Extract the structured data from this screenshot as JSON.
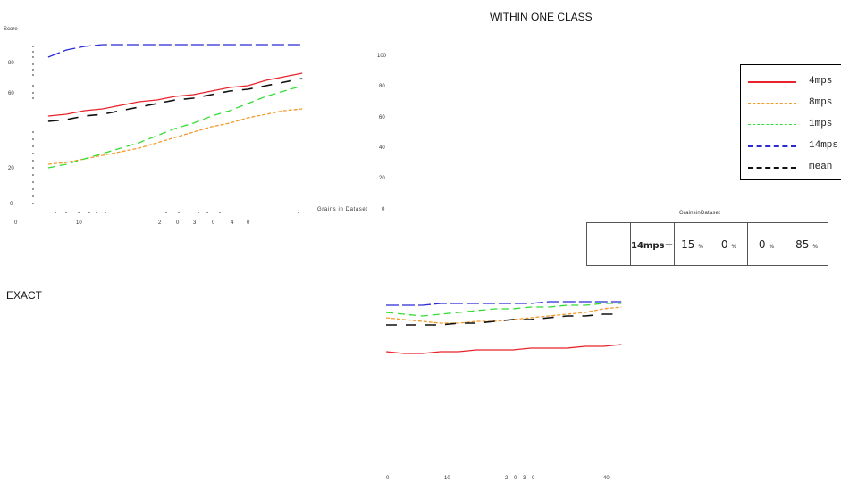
{
  "titles": {
    "within_one_class": "WITHIN ONE CLASS",
    "exact": "EXACT"
  },
  "top_left_chart": {
    "ylabel": "Score",
    "xlabel": "Grains in Dataset",
    "y_ticks": [
      "80",
      "60",
      "20",
      "0"
    ],
    "x_ticks": [
      "0",
      "10",
      "2",
      "0",
      "3",
      "0",
      "4",
      "0"
    ],
    "x_end_tick": "0"
  },
  "middle_axis": {
    "y_ticks": [
      "100",
      "80",
      "60",
      "40",
      "20"
    ]
  },
  "bottom_chart": {
    "x_ticks": [
      "0",
      "10",
      "2",
      "0",
      "3",
      "0",
      "40"
    ]
  },
  "legend": {
    "items": [
      {
        "label": "4mps",
        "color": "#e8242b",
        "dash": ""
      },
      {
        "label": "8mps",
        "color": "#f39a2c",
        "dash": "4,2"
      },
      {
        "label": "1mps",
        "color": "#33dd33",
        "dash": "8,5"
      },
      {
        "label": "14mps",
        "color": "#2b2bd6",
        "dash": "14,4"
      },
      {
        "label": "mean",
        "color": "#111111",
        "dash": "12,10"
      }
    ]
  },
  "table": {
    "header": "GrainsinDataset",
    "row_label": "14mps",
    "marker": "+",
    "cells": [
      {
        "value": "15",
        "unit": "%"
      },
      {
        "value": "0",
        "unit": "%"
      },
      {
        "value": "0",
        "unit": "%"
      },
      {
        "value": "85",
        "unit": "%"
      }
    ]
  },
  "chart_data": [
    {
      "type": "line",
      "title": "",
      "xlabel": "Grains in Dataset",
      "ylabel": "Score",
      "xlim": [
        0,
        48
      ],
      "ylim": [
        0,
        100
      ],
      "x": [
        5,
        8,
        11,
        14,
        17,
        20,
        23,
        26,
        29,
        32,
        35,
        38,
        41,
        44,
        47
      ],
      "series": [
        {
          "name": "4mps",
          "values": [
            51,
            52,
            54,
            55,
            57,
            59,
            60,
            62,
            63,
            65,
            67,
            68,
            71,
            73,
            75
          ]
        },
        {
          "name": "8mps",
          "values": [
            24,
            25,
            27,
            29,
            31,
            33,
            36,
            39,
            42,
            45,
            47,
            50,
            52,
            54,
            55
          ]
        },
        {
          "name": "1mps",
          "values": [
            22,
            24,
            27,
            30,
            33,
            36,
            40,
            44,
            47,
            51,
            54,
            58,
            62,
            65,
            68
          ]
        },
        {
          "name": "14mps",
          "values": [
            84,
            88,
            90,
            91,
            91,
            91,
            91,
            91,
            91,
            91,
            91,
            91,
            91,
            91,
            91
          ]
        },
        {
          "name": "mean",
          "values": [
            48,
            49,
            51,
            52,
            54,
            56,
            58,
            60,
            61,
            63,
            65,
            66,
            68,
            70,
            72
          ]
        }
      ]
    },
    {
      "type": "line",
      "title": "",
      "xlabel": "",
      "ylabel": "",
      "xlim": [
        0,
        40
      ],
      "ylim": [
        0,
        100
      ],
      "x": [
        0,
        3,
        6,
        9,
        12,
        15,
        18,
        21,
        24,
        27,
        30,
        33,
        36,
        39
      ],
      "series": [
        {
          "name": "4mps",
          "values": [
            53,
            52,
            52,
            53,
            53,
            54,
            54,
            54,
            55,
            55,
            55,
            56,
            56,
            57
          ]
        },
        {
          "name": "8mps",
          "values": [
            72,
            71,
            70,
            69,
            69,
            70,
            70,
            71,
            72,
            73,
            74,
            75,
            77,
            78
          ]
        },
        {
          "name": "1mps",
          "values": [
            75,
            74,
            73,
            74,
            75,
            76,
            77,
            77,
            78,
            78,
            79,
            79,
            80,
            80
          ]
        },
        {
          "name": "14mps",
          "values": [
            79,
            79,
            79,
            80,
            80,
            80,
            80,
            80,
            80,
            81,
            81,
            81,
            81,
            81
          ]
        },
        {
          "name": "mean",
          "values": [
            68,
            68,
            68,
            68,
            69,
            69,
            70,
            71,
            71,
            72,
            73,
            73,
            74,
            74
          ]
        }
      ]
    }
  ]
}
